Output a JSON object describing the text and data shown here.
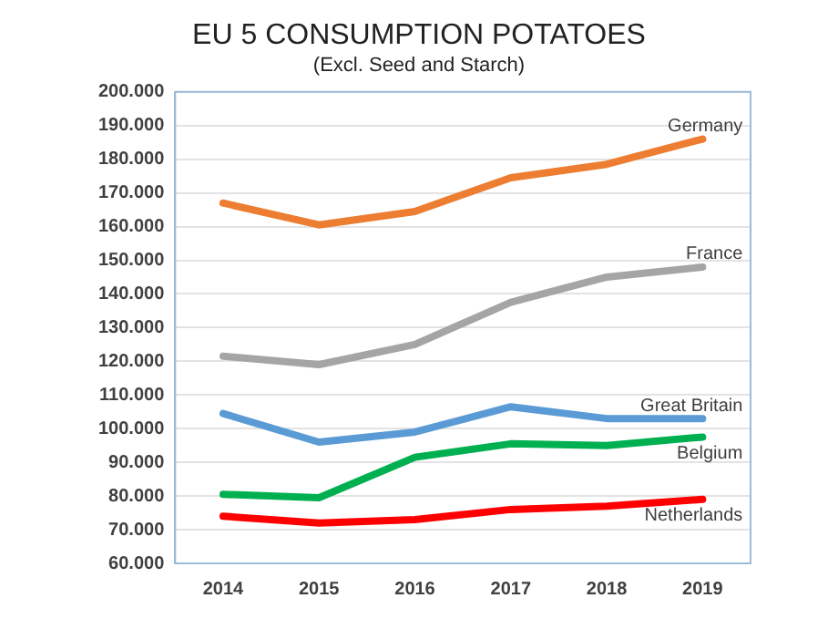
{
  "chart_data": {
    "type": "line",
    "title": "EU 5 CONSUMPTION POTATOES",
    "subtitle": "(Excl. Seed and Starch)",
    "categories": [
      "2014",
      "2015",
      "2016",
      "2017",
      "2018",
      "2019"
    ],
    "series": [
      {
        "name": "Germany",
        "color": "#ed7d31",
        "values": [
          167000,
          160500,
          164500,
          174500,
          178500,
          186000
        ]
      },
      {
        "name": "France",
        "color": "#a5a5a5",
        "values": [
          121500,
          119000,
          125000,
          137500,
          145000,
          148000
        ]
      },
      {
        "name": "Great Britain",
        "color": "#5b9bd5",
        "values": [
          104500,
          96000,
          99000,
          106500,
          103000,
          103000
        ]
      },
      {
        "name": "Belgium",
        "color": "#00b050",
        "values": [
          80500,
          79500,
          91500,
          95500,
          95000,
          97500
        ]
      },
      {
        "name": "Netherlands",
        "color": "#ff0000",
        "values": [
          74000,
          72000,
          73000,
          76000,
          77000,
          79000
        ]
      }
    ],
    "ylim": [
      60000,
      200000
    ],
    "yticks": [
      {
        "value": 60000,
        "label": "60.000"
      },
      {
        "value": 70000,
        "label": "70.000"
      },
      {
        "value": 80000,
        "label": "80.000"
      },
      {
        "value": 90000,
        "label": "90.000"
      },
      {
        "value": 100000,
        "label": "100.000"
      },
      {
        "value": 110000,
        "label": "110.000"
      },
      {
        "value": 120000,
        "label": "120.000"
      },
      {
        "value": 130000,
        "label": "130.000"
      },
      {
        "value": 140000,
        "label": "140.000"
      },
      {
        "value": 150000,
        "label": "150.000"
      },
      {
        "value": 160000,
        "label": "160.000"
      },
      {
        "value": 170000,
        "label": "170.000"
      },
      {
        "value": 180000,
        "label": "180.000"
      },
      {
        "value": 190000,
        "label": "190.000"
      },
      {
        "value": 200000,
        "label": "200.000"
      }
    ],
    "grid": "y",
    "legend": false,
    "marker": "none",
    "line_style": "solid"
  }
}
